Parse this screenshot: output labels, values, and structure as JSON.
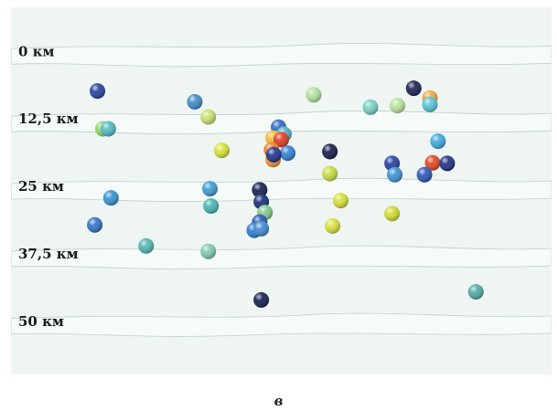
{
  "panel_label": "в",
  "chart_data": {
    "type": "scatter",
    "title": "",
    "xlabel": "",
    "ylabel": "",
    "y_axis": {
      "unit": "км",
      "ticks": [
        "0 км",
        "12,5 км",
        "25 км",
        "37,5 км",
        "50 км"
      ],
      "tick_values": [
        0,
        12.5,
        25,
        37.5,
        50
      ],
      "range": [
        -8,
        60
      ],
      "inverted": true
    },
    "x_range": [
      0,
      100
    ],
    "grid": "fault-surface contour bands at each depth level",
    "points": [
      {
        "x": 16,
        "depth": 7.5,
        "color": "#1f3e9a"
      },
      {
        "x": 34,
        "depth": 9.5,
        "color": "#3f8ac8"
      },
      {
        "x": 56,
        "depth": 8.2,
        "color": "#aee29a"
      },
      {
        "x": 74.5,
        "depth": 7.0,
        "color": "#141d4f"
      },
      {
        "x": 77.5,
        "depth": 8.8,
        "color": "#f0a53a"
      },
      {
        "x": 66.5,
        "depth": 10.5,
        "color": "#73cfc4"
      },
      {
        "x": 71.5,
        "depth": 10.2,
        "color": "#b9e39b"
      },
      {
        "x": 77.5,
        "depth": 10.0,
        "color": "#56c2d4"
      },
      {
        "x": 17,
        "depth": 14.5,
        "color": "#8fd66a"
      },
      {
        "x": 18,
        "depth": 14.5,
        "color": "#4ebac2"
      },
      {
        "x": 36.5,
        "depth": 12.3,
        "color": "#c8e06e"
      },
      {
        "x": 39,
        "depth": 18.5,
        "color": "#d6e135"
      },
      {
        "x": 49.5,
        "depth": 14.2,
        "color": "#2c66c0"
      },
      {
        "x": 50.5,
        "depth": 15.5,
        "color": "#4ab0c8"
      },
      {
        "x": 48.5,
        "depth": 16.2,
        "color": "#f3bb35"
      },
      {
        "x": 50,
        "depth": 16.5,
        "color": "#e1381f"
      },
      {
        "x": 48.2,
        "depth": 18.4,
        "color": "#f07d22"
      },
      {
        "x": 51.2,
        "depth": 19.0,
        "color": "#2d7fd4"
      },
      {
        "x": 48.5,
        "depth": 20.2,
        "color": "#f2922c"
      },
      {
        "x": 48.6,
        "depth": 19.3,
        "color": "#1d2f87"
      },
      {
        "x": 79,
        "depth": 16.8,
        "color": "#3ea7dd"
      },
      {
        "x": 59,
        "depth": 18.7,
        "color": "#0f1740"
      },
      {
        "x": 70.5,
        "depth": 20.9,
        "color": "#223ba0"
      },
      {
        "x": 71,
        "depth": 23.0,
        "color": "#3b8fd0"
      },
      {
        "x": 78,
        "depth": 20.8,
        "color": "#e0421f"
      },
      {
        "x": 80.7,
        "depth": 20.9,
        "color": "#1a2c7e"
      },
      {
        "x": 76.5,
        "depth": 23.0,
        "color": "#2753b5"
      },
      {
        "x": 59,
        "depth": 22.8,
        "color": "#c7dd3e"
      },
      {
        "x": 18.5,
        "depth": 27.3,
        "color": "#2f8fd2"
      },
      {
        "x": 36.8,
        "depth": 25.6,
        "color": "#3a9bd6"
      },
      {
        "x": 37,
        "depth": 28.8,
        "color": "#41b5b1"
      },
      {
        "x": 46,
        "depth": 25.8,
        "color": "#0d1a4e"
      },
      {
        "x": 46.3,
        "depth": 28.0,
        "color": "#132874"
      },
      {
        "x": 47,
        "depth": 30.0,
        "color": "#7ec98a"
      },
      {
        "x": 46,
        "depth": 31.8,
        "color": "#2150b0"
      },
      {
        "x": 45,
        "depth": 33.3,
        "color": "#277ad0"
      },
      {
        "x": 46.3,
        "depth": 33.0,
        "color": "#3a86cf"
      },
      {
        "x": 61,
        "depth": 27.8,
        "color": "#d7e035"
      },
      {
        "x": 70.5,
        "depth": 30.2,
        "color": "#cfdc2d"
      },
      {
        "x": 59.5,
        "depth": 32.5,
        "color": "#dbe137"
      },
      {
        "x": 15.5,
        "depth": 32.3,
        "color": "#2e6fc8"
      },
      {
        "x": 25,
        "depth": 36.2,
        "color": "#4eb3b0"
      },
      {
        "x": 36.5,
        "depth": 37.2,
        "color": "#7ec9b5"
      },
      {
        "x": 46.3,
        "depth": 46.2,
        "color": "#0e1a4c"
      },
      {
        "x": 86,
        "depth": 44.7,
        "color": "#4fa8a8"
      }
    ]
  }
}
